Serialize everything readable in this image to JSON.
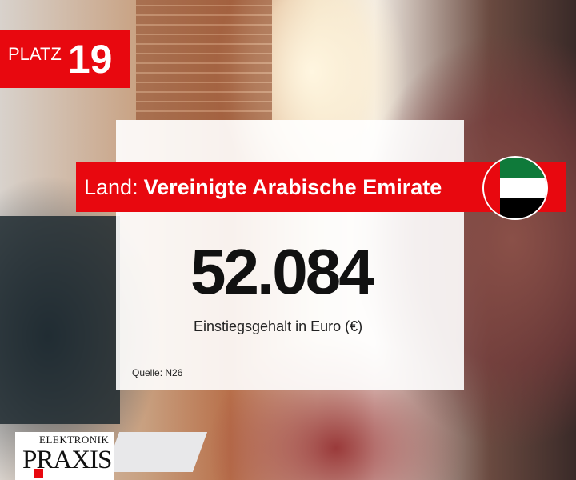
{
  "rank": {
    "label": "PLATZ",
    "number": "19"
  },
  "country": {
    "label": "Land:",
    "name": "Vereinigte Arabische Emirate",
    "flag": "uae-flag"
  },
  "salary": {
    "value": "52.084",
    "caption": "Einstiegsgehalt in Euro (€)"
  },
  "source": "Quelle: N26",
  "logo": {
    "line1": "ELEKTRONIK",
    "line2": "PRAXIS"
  },
  "colors": {
    "accent": "#e8080f"
  }
}
